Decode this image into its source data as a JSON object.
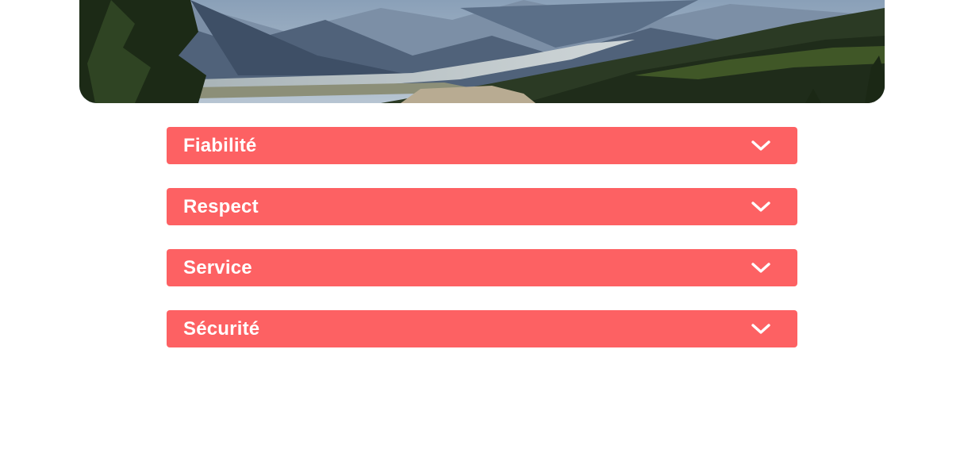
{
  "colors": {
    "accordion_bg": "#fd6163",
    "accordion_text": "#ffffff"
  },
  "hero": {
    "image": "mountain-valley-landscape"
  },
  "accordion": {
    "items": [
      {
        "label": "Fiabilité",
        "icon": "chevron-down-icon"
      },
      {
        "label": "Respect",
        "icon": "chevron-down-icon"
      },
      {
        "label": "Service",
        "icon": "chevron-down-icon"
      },
      {
        "label": "Sécurité",
        "icon": "chevron-down-icon"
      }
    ]
  }
}
